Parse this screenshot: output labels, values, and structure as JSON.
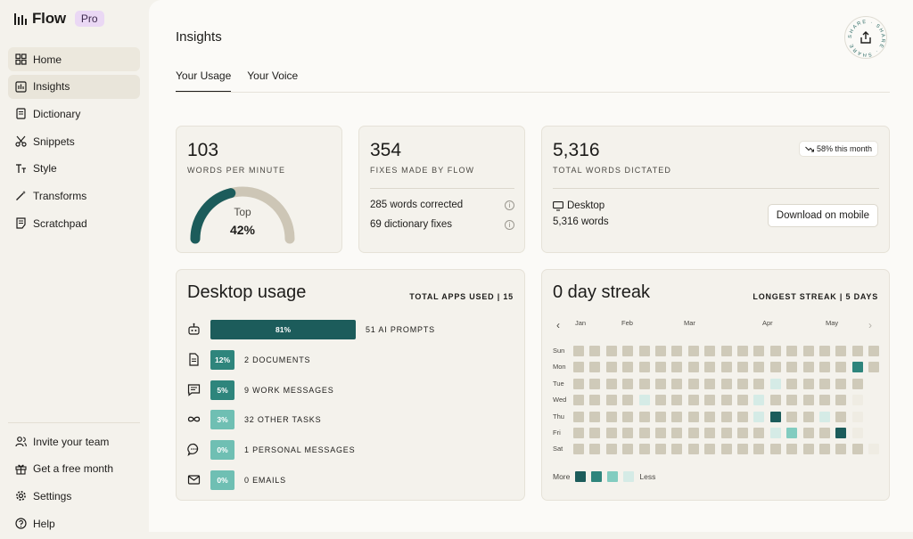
{
  "app": {
    "name": "Flow",
    "badge": "Pro"
  },
  "sidebar": {
    "items": [
      {
        "label": "Home",
        "icon": "grid-icon"
      },
      {
        "label": "Insights",
        "icon": "bar-chart-icon",
        "active": true
      },
      {
        "label": "Dictionary",
        "icon": "book-icon"
      },
      {
        "label": "Snippets",
        "icon": "scissors-icon"
      },
      {
        "label": "Style",
        "icon": "text-style-icon"
      },
      {
        "label": "Transforms",
        "icon": "wand-icon"
      },
      {
        "label": "Scratchpad",
        "icon": "note-icon"
      }
    ],
    "bottom_items": [
      {
        "label": "Invite your team",
        "icon": "users-icon"
      },
      {
        "label": "Get a free month",
        "icon": "gift-icon"
      },
      {
        "label": "Settings",
        "icon": "gear-icon"
      },
      {
        "label": "Help",
        "icon": "help-icon"
      }
    ]
  },
  "header": {
    "title": "Insights",
    "share_label": "SHARE · SHARE · SHARE ·"
  },
  "tabs": [
    {
      "label": "Your Usage",
      "active": true
    },
    {
      "label": "Your Voice"
    }
  ],
  "wpm": {
    "value": "103",
    "label": "WORDS PER MINUTE",
    "gauge_top": "Top",
    "gauge_pct": "42%",
    "gauge_fraction": 0.42
  },
  "fixes": {
    "value": "354",
    "label": "FIXES MADE BY FLOW",
    "rows": [
      "285 words corrected",
      "69 dictionary fixes"
    ]
  },
  "total": {
    "value": "5,316",
    "label": "TOTAL WORDS DICTATED",
    "trend": "58% this month",
    "platform": "Desktop",
    "platform_words": "5,316 words",
    "download_label": "Download on mobile"
  },
  "desktop_usage": {
    "title": "Desktop usage",
    "apps_used": "TOTAL APPS USED | 15",
    "rows": [
      {
        "icon": "robot-icon",
        "pct": "81%",
        "fraction": 0.81,
        "label": "51 AI PROMPTS",
        "color": "#1c5c5b"
      },
      {
        "icon": "document-icon",
        "pct": "12%",
        "fraction": 0.12,
        "label": "2 DOCUMENTS",
        "color": "#2e857c"
      },
      {
        "icon": "message-icon",
        "pct": "5%",
        "fraction": 0.05,
        "label": "9 WORK MESSAGES",
        "color": "#2e857c"
      },
      {
        "icon": "infinity-icon",
        "pct": "3%",
        "fraction": 0.03,
        "label": "32 OTHER TASKS",
        "color": "#6fbfb3"
      },
      {
        "icon": "chat-bubble-icon",
        "pct": "0%",
        "fraction": 0.0,
        "label": "1 PERSONAL MESSAGES",
        "color": "#6fbfb3"
      },
      {
        "icon": "mail-icon",
        "pct": "0%",
        "fraction": 0.0,
        "label": "0 EMAILS",
        "color": "#6fbfb3"
      }
    ]
  },
  "streak": {
    "title": "0 day streak",
    "longest": "LONGEST STREAK | 5 DAYS",
    "months": [
      "Jan",
      "Feb",
      "Mar",
      "Apr",
      "May"
    ],
    "days": [
      "Sun",
      "Mon",
      "Tue",
      "Wed",
      "Thu",
      "Fri",
      "Sat"
    ],
    "legend_more": "More",
    "legend_less": "Less",
    "colors": {
      "empty": "#cfcab9",
      "l1": "#d5ebe6",
      "l2": "#82ccc0",
      "l3": "#2e857c",
      "l4": "#1c5c5b",
      "faint": "#efece3"
    },
    "grid": [
      "ooooooooooooooooooo",
      "ooooooooooooooooo3o",
      "oooooooooooo1ooooo",
      "oooo1oooooo1ooooof",
      "ooooooooooo14oo1of",
      "oooooooooooo12oo4f",
      "oooooooooooooooooof"
    ]
  }
}
